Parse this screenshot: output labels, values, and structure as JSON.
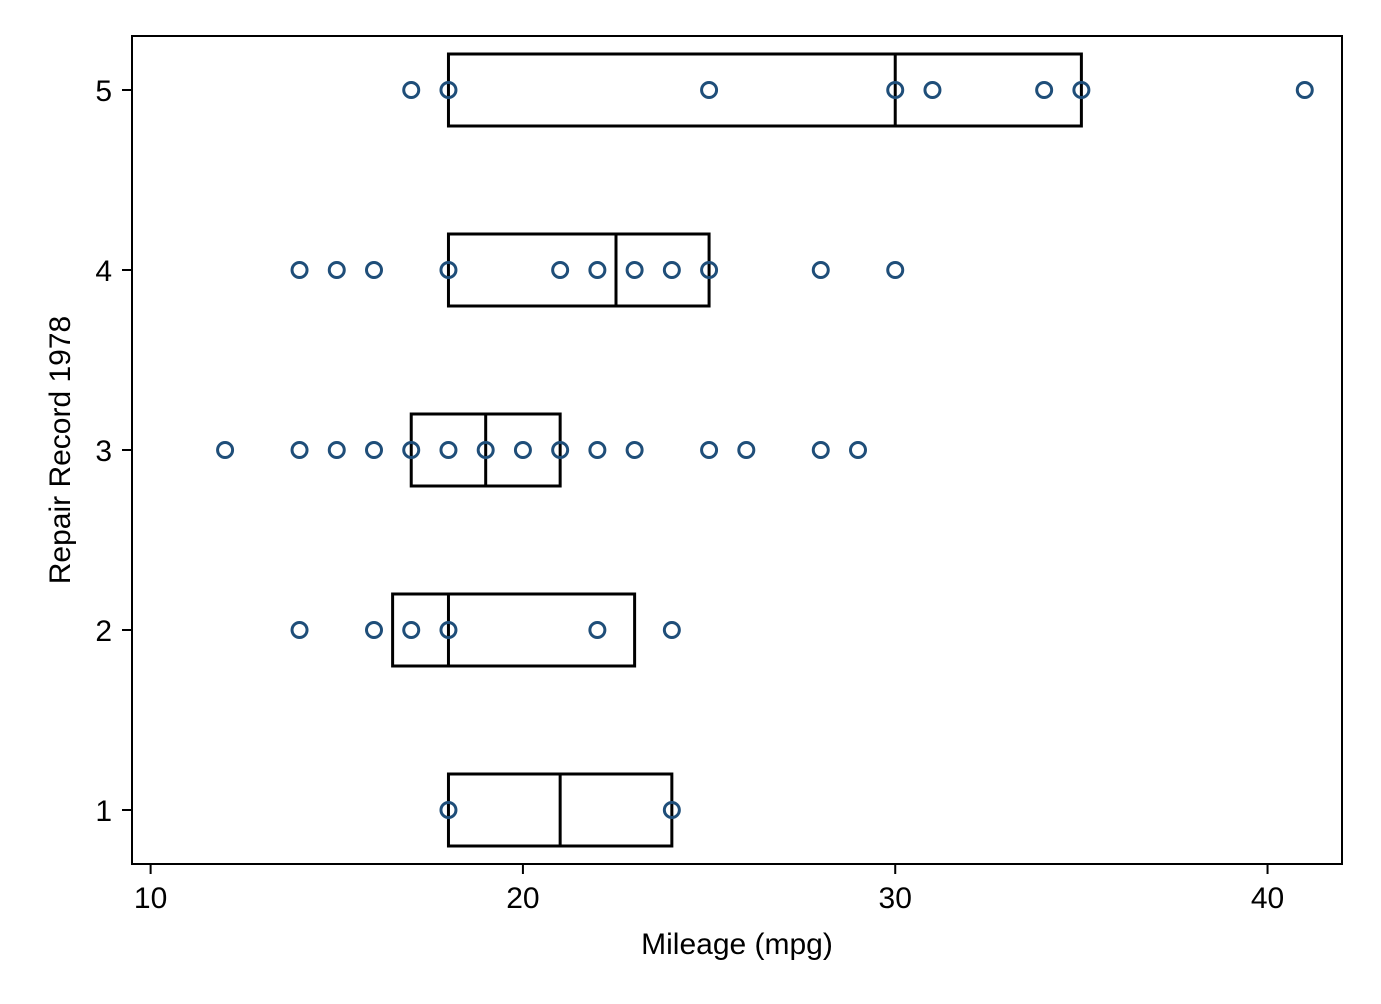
{
  "chart_data": {
    "type": "scatter",
    "overlay": "box",
    "title": "",
    "xlabel": "Mileage (mpg)",
    "ylabel": "Repair Record 1978",
    "xlim": [
      9.5,
      42
    ],
    "ylim": [
      0.7,
      5.3
    ],
    "xticks": [
      10,
      20,
      30,
      40
    ],
    "yticks": [
      1,
      2,
      3,
      4,
      5
    ],
    "grid": false,
    "legend": "none",
    "colors": {
      "points": "#1f4e79",
      "boxes": "#000000",
      "frame": "#000000",
      "background": "#ffffff"
    },
    "boxes": [
      {
        "group": 1,
        "q1": 18,
        "median": 21,
        "q3": 24
      },
      {
        "group": 2,
        "q1": 16.5,
        "median": 18,
        "q3": 23
      },
      {
        "group": 3,
        "q1": 17,
        "median": 19,
        "q3": 21
      },
      {
        "group": 4,
        "q1": 18,
        "median": 22.5,
        "q3": 25
      },
      {
        "group": 5,
        "q1": 18,
        "median": 30,
        "q3": 35
      }
    ],
    "points": [
      {
        "x": 18,
        "y": 1
      },
      {
        "x": 24,
        "y": 1
      },
      {
        "x": 14,
        "y": 2
      },
      {
        "x": 16,
        "y": 2
      },
      {
        "x": 17,
        "y": 2
      },
      {
        "x": 18,
        "y": 2
      },
      {
        "x": 22,
        "y": 2
      },
      {
        "x": 24,
        "y": 2
      },
      {
        "x": 12,
        "y": 3
      },
      {
        "x": 14,
        "y": 3
      },
      {
        "x": 15,
        "y": 3
      },
      {
        "x": 16,
        "y": 3
      },
      {
        "x": 17,
        "y": 3
      },
      {
        "x": 18,
        "y": 3
      },
      {
        "x": 19,
        "y": 3
      },
      {
        "x": 20,
        "y": 3
      },
      {
        "x": 21,
        "y": 3
      },
      {
        "x": 22,
        "y": 3
      },
      {
        "x": 23,
        "y": 3
      },
      {
        "x": 25,
        "y": 3
      },
      {
        "x": 26,
        "y": 3
      },
      {
        "x": 28,
        "y": 3
      },
      {
        "x": 29,
        "y": 3
      },
      {
        "x": 14,
        "y": 4
      },
      {
        "x": 15,
        "y": 4
      },
      {
        "x": 16,
        "y": 4
      },
      {
        "x": 18,
        "y": 4
      },
      {
        "x": 21,
        "y": 4
      },
      {
        "x": 22,
        "y": 4
      },
      {
        "x": 23,
        "y": 4
      },
      {
        "x": 24,
        "y": 4
      },
      {
        "x": 25,
        "y": 4
      },
      {
        "x": 28,
        "y": 4
      },
      {
        "x": 30,
        "y": 4
      },
      {
        "x": 17,
        "y": 5
      },
      {
        "x": 18,
        "y": 5
      },
      {
        "x": 25,
        "y": 5
      },
      {
        "x": 30,
        "y": 5
      },
      {
        "x": 31,
        "y": 5
      },
      {
        "x": 34,
        "y": 5
      },
      {
        "x": 35,
        "y": 5
      },
      {
        "x": 41,
        "y": 5
      }
    ]
  }
}
